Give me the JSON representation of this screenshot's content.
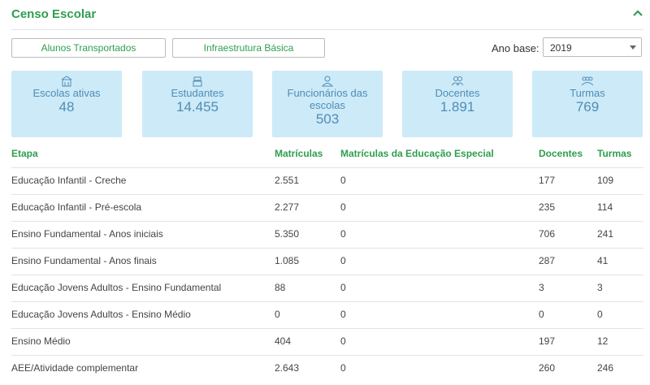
{
  "header": {
    "title": "Censo Escolar"
  },
  "buttons": [
    "Alunos Transportados",
    "Infraestrutura Básica"
  ],
  "year_select": {
    "label": "Ano base:",
    "value": "2019"
  },
  "cards": [
    {
      "label": "Escolas ativas",
      "value": "48"
    },
    {
      "label": "Estudantes",
      "value": "14.455"
    },
    {
      "label": "Funcionários das escolas",
      "value": "503"
    },
    {
      "label": "Docentes",
      "value": "1.891"
    },
    {
      "label": "Turmas",
      "value": "769"
    }
  ],
  "table": {
    "columns": [
      "Etapa",
      "Matrículas",
      "Matrículas da Educação Especial",
      "Docentes",
      "Turmas"
    ],
    "rows": [
      [
        "Educação Infantil - Creche",
        "2.551",
        "0",
        "177",
        "109"
      ],
      [
        "Educação Infantil - Pré-escola",
        "2.277",
        "0",
        "235",
        "114"
      ],
      [
        "Ensino Fundamental - Anos iniciais",
        "5.350",
        "0",
        "706",
        "241"
      ],
      [
        "Ensino Fundamental - Anos finais",
        "1.085",
        "0",
        "287",
        "41"
      ],
      [
        "Educação Jovens Adultos - Ensino Fundamental",
        "88",
        "0",
        "3",
        "3"
      ],
      [
        "Educação Jovens Adultos - Ensino Médio",
        "0",
        "0",
        "0",
        "0"
      ],
      [
        "Ensino Médio",
        "404",
        "0",
        "197",
        "12"
      ],
      [
        "AEE/Atividade complementar",
        "2.643",
        "0",
        "260",
        "246"
      ]
    ]
  }
}
